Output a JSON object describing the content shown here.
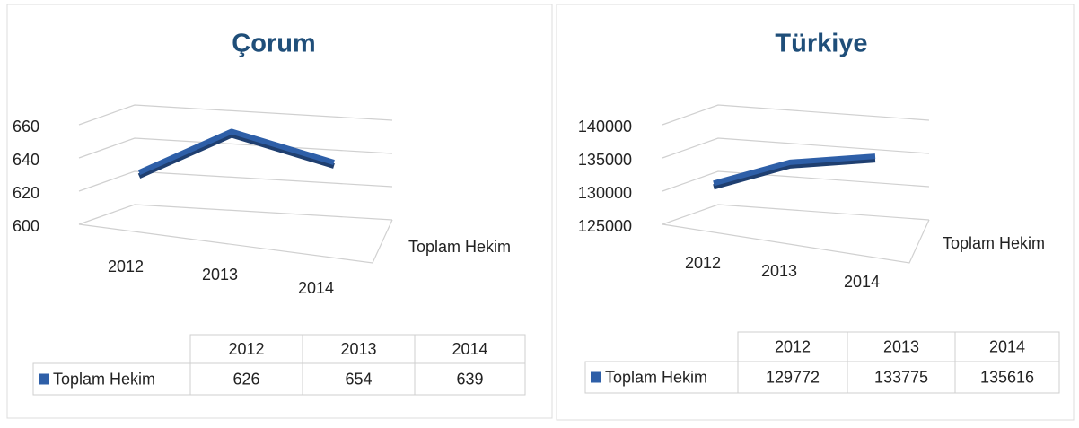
{
  "chart_data": [
    {
      "type": "line",
      "title": "Çorum",
      "categories": [
        "2012",
        "2013",
        "2014"
      ],
      "series": [
        {
          "name": "Toplam Hekim",
          "color": "#2e5fa8",
          "values": [
            626,
            654,
            639
          ]
        }
      ],
      "ylim": [
        600,
        660
      ],
      "yticks": [
        600,
        620,
        640,
        660
      ],
      "grid": true
    },
    {
      "type": "line",
      "title": "Türkiye",
      "categories": [
        "2012",
        "2013",
        "2014"
      ],
      "series": [
        {
          "name": "Toplam Hekim",
          "color": "#2e5fa8",
          "values": [
            129772,
            133775,
            135616
          ]
        }
      ],
      "ylim": [
        125000,
        140000
      ],
      "yticks": [
        125000,
        130000,
        135000,
        140000
      ],
      "grid": true
    }
  ]
}
